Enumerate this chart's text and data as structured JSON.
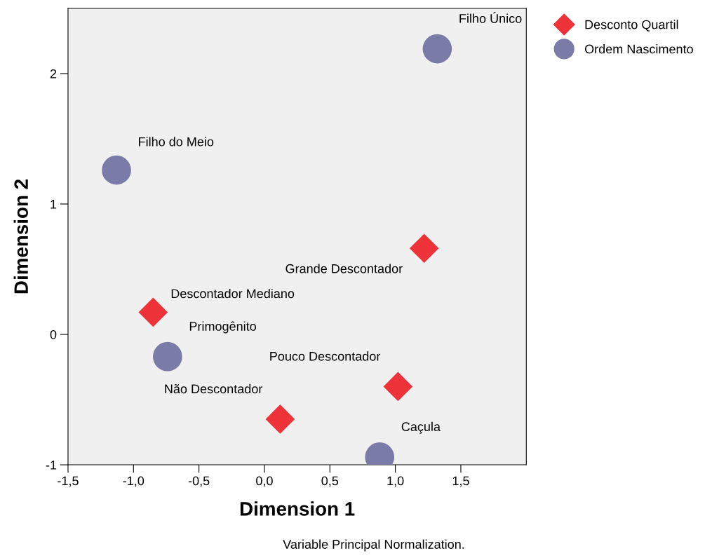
{
  "chart_data": {
    "type": "scatter",
    "xlabel": "Dimension 1",
    "ylabel": "Dimension 2",
    "xlim": [
      -1.5,
      2.0
    ],
    "ylim": [
      -1,
      2.5
    ],
    "xticks": [
      {
        "value": -1.5,
        "label": "-1,5"
      },
      {
        "value": -1.0,
        "label": "-1,0"
      },
      {
        "value": -0.5,
        "label": "-0,5"
      },
      {
        "value": 0.0,
        "label": "0,0"
      },
      {
        "value": 0.5,
        "label": "0,5"
      },
      {
        "value": 1.0,
        "label": "1,0"
      },
      {
        "value": 1.5,
        "label": "1,5"
      }
    ],
    "yticks": [
      -1,
      0,
      1,
      2
    ],
    "grid": false,
    "legend": "top right",
    "series": [
      {
        "name": "Desconto Quartil",
        "color": "#ee3239",
        "marker": "diamond",
        "x": [
          1.22,
          -0.85,
          1.02,
          0.12
        ],
        "values": [
          0.66,
          0.17,
          -0.4,
          -0.65
        ]
      },
      {
        "name": "Ordem Nascimento",
        "color": "#7b7ba8",
        "marker": "circle",
        "x": [
          1.32,
          -1.13,
          -0.74,
          0.88
        ],
        "values": [
          2.19,
          1.26,
          -0.17,
          -0.94
        ]
      }
    ],
    "annotations": [
      {
        "text": "Grande Descontador",
        "x": 1.22,
        "y": 0.66
      },
      {
        "text": "Descontador Mediano",
        "x": -0.85,
        "y": 0.17
      },
      {
        "text": "Pouco Descontador",
        "x": 1.02,
        "y": -0.4
      },
      {
        "text": "Não Descontador",
        "x": 0.12,
        "y": -0.65
      },
      {
        "text": "Filho Único",
        "x": 1.32,
        "y": 2.19
      },
      {
        "text": "Filho do Meio",
        "x": -1.13,
        "y": 1.26
      },
      {
        "text": "Primogênito",
        "x": -0.74,
        "y": -0.17
      },
      {
        "text": "Caçula",
        "x": 0.88,
        "y": -0.94
      },
      "Variable Principal Normalization."
    ]
  }
}
